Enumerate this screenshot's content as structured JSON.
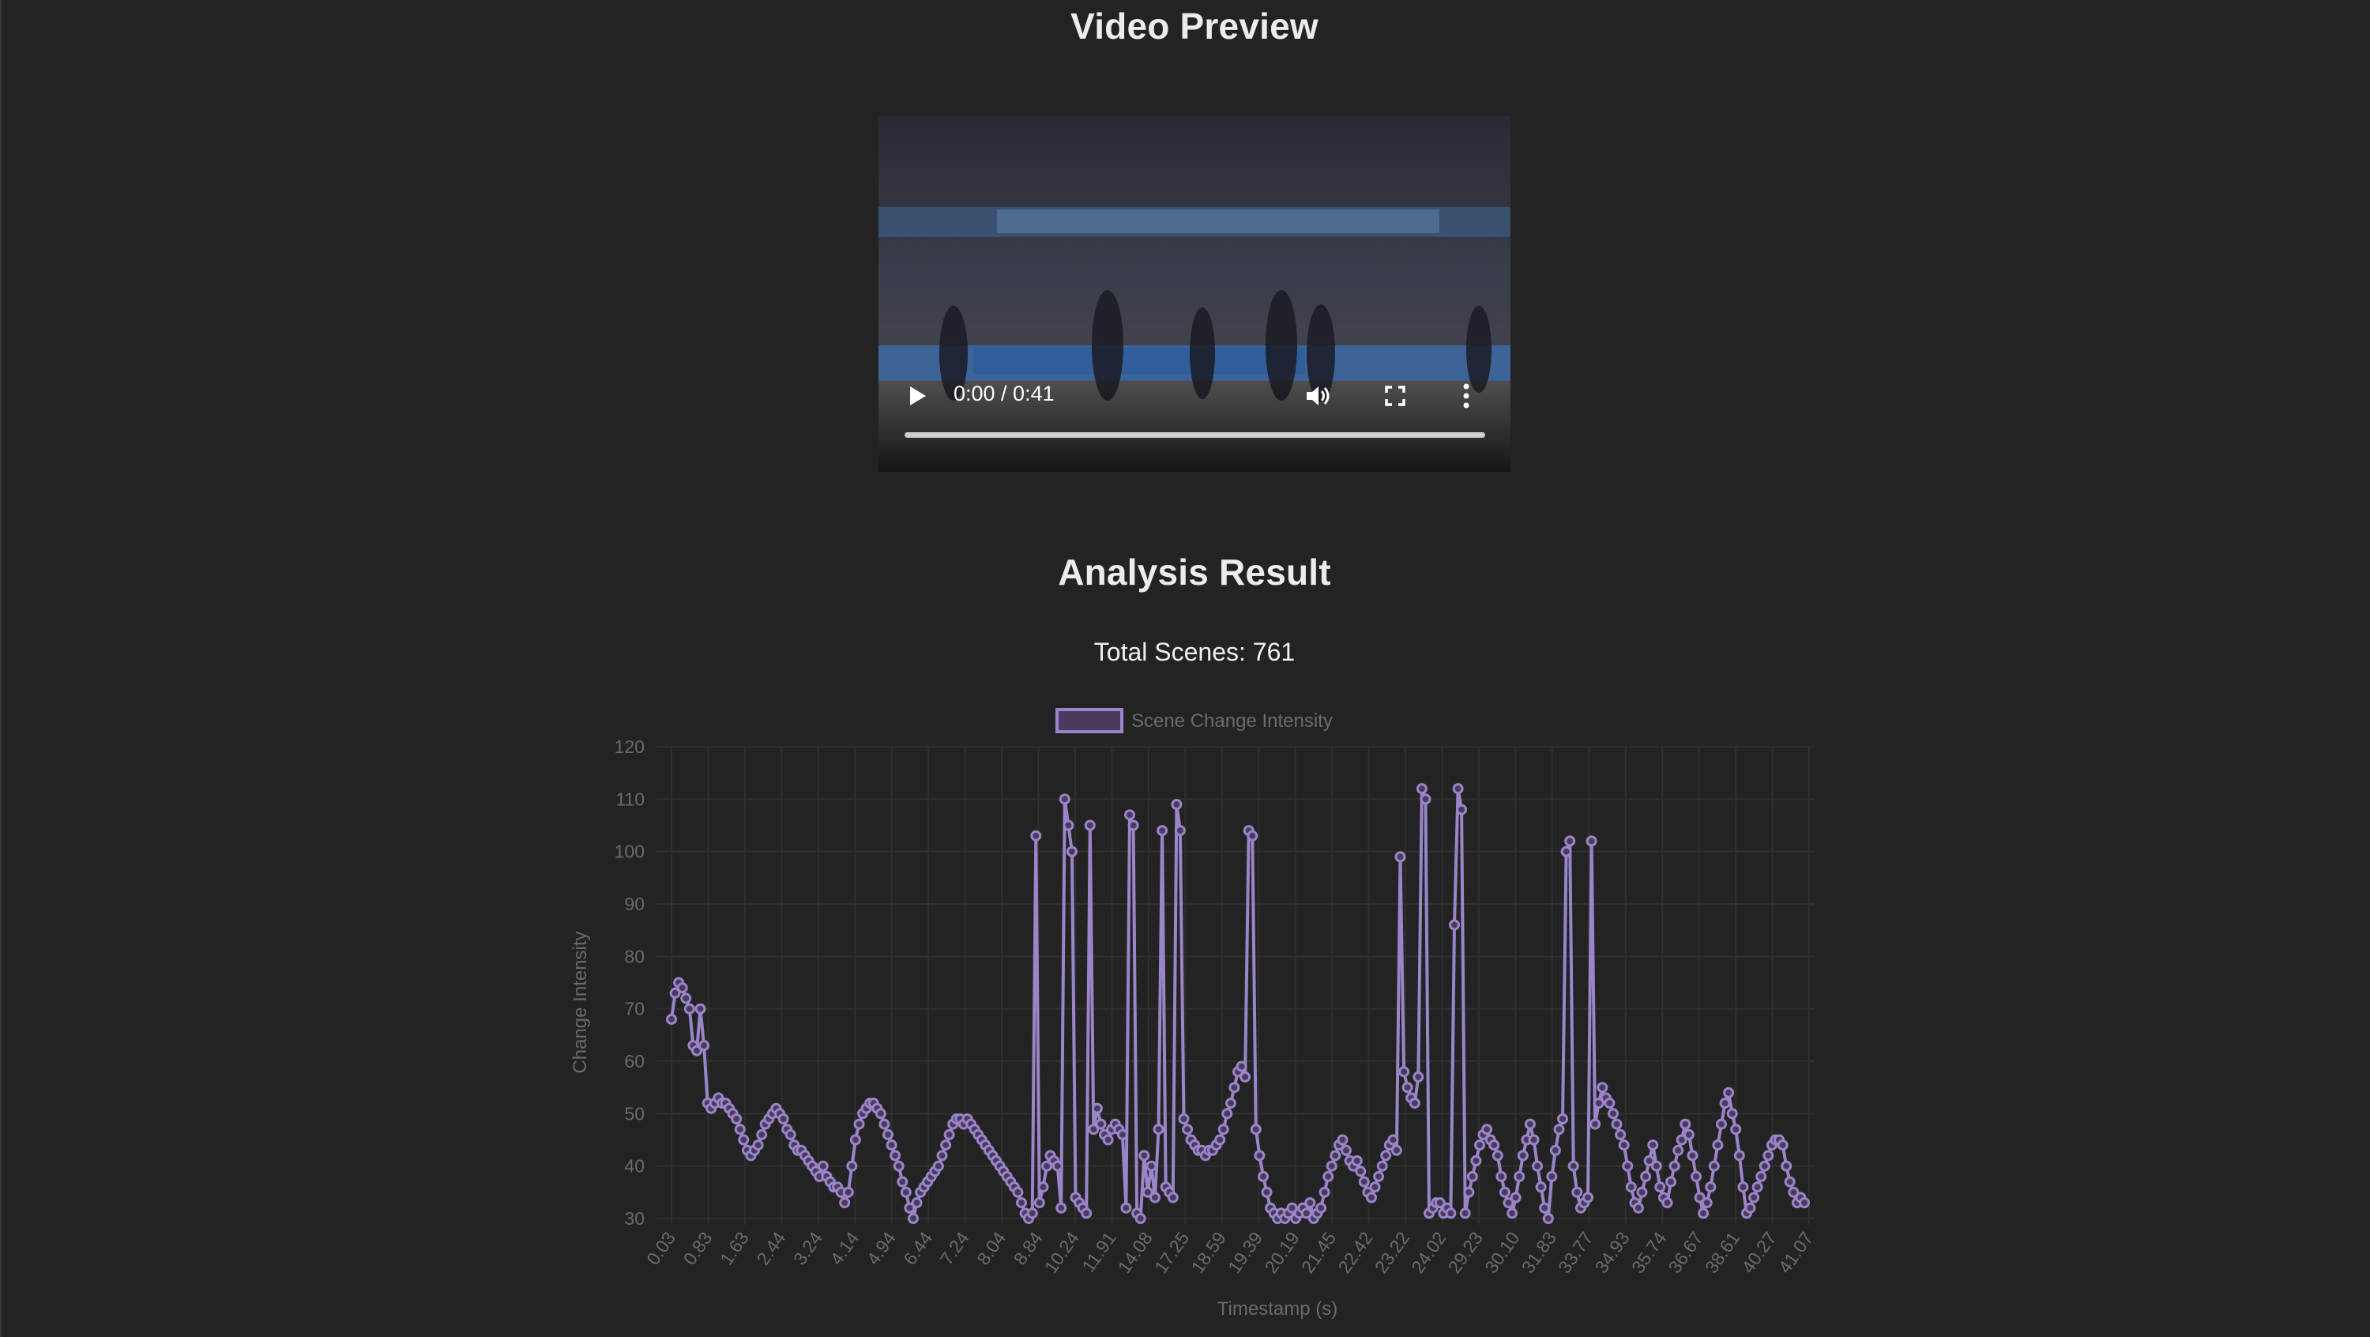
{
  "video_section": {
    "title": "Video Preview",
    "player": {
      "time_label": "0:00 / 0:41",
      "progress": 0,
      "controls": [
        "play-icon",
        "volume-icon",
        "fullscreen-icon",
        "more-options-icon"
      ]
    }
  },
  "analysis": {
    "title": "Analysis Result",
    "total_scenes": "Total Scenes: 761"
  },
  "colors": {
    "background": "#232323",
    "series": "#9a85c9",
    "series_fill": "#4b3a5e",
    "grid": "#2f2f2f",
    "axis_text": "#6b6b6b"
  },
  "chart_data": {
    "type": "line",
    "legend": [
      "Scene Change Intensity"
    ],
    "legend_position": "top",
    "xlabel": "Timestamp (s)",
    "ylabel": "Change Intensity",
    "ylim": [
      30,
      120
    ],
    "yticks": [
      30,
      40,
      50,
      60,
      70,
      80,
      90,
      100,
      110,
      120
    ],
    "xticks": [
      "0.03",
      "0.83",
      "1.63",
      "2.44",
      "3.24",
      "4.14",
      "4.94",
      "6.44",
      "7.24",
      "8.04",
      "8.84",
      "10.24",
      "11.91",
      "14.08",
      "17.25",
      "18.59",
      "19.39",
      "20.19",
      "21.45",
      "22.42",
      "23.22",
      "24.02",
      "29.23",
      "30.10",
      "31.83",
      "33.77",
      "34.93",
      "35.74",
      "36.67",
      "38.61",
      "40.27",
      "41.07"
    ],
    "grid": true,
    "series": [
      {
        "name": "Scene Change Intensity",
        "points": [
          [
            0,
            68
          ],
          [
            1,
            73
          ],
          [
            2,
            75
          ],
          [
            3,
            74
          ],
          [
            4,
            72
          ],
          [
            5,
            70
          ],
          [
            6,
            63
          ],
          [
            7,
            62
          ],
          [
            8,
            70
          ],
          [
            9,
            63
          ],
          [
            10,
            52
          ],
          [
            11,
            51
          ],
          [
            12,
            52
          ],
          [
            13,
            53
          ],
          [
            14,
            52
          ],
          [
            15,
            52
          ],
          [
            16,
            51
          ],
          [
            17,
            50
          ],
          [
            18,
            49
          ],
          [
            19,
            47
          ],
          [
            20,
            45
          ],
          [
            21,
            43
          ],
          [
            22,
            42
          ],
          [
            23,
            43
          ],
          [
            24,
            44
          ],
          [
            25,
            46
          ],
          [
            26,
            48
          ],
          [
            27,
            49
          ],
          [
            28,
            50
          ],
          [
            29,
            51
          ],
          [
            30,
            50
          ],
          [
            31,
            49
          ],
          [
            32,
            47
          ],
          [
            33,
            46
          ],
          [
            34,
            44
          ],
          [
            35,
            43
          ],
          [
            36,
            43
          ],
          [
            37,
            42
          ],
          [
            38,
            41
          ],
          [
            39,
            40
          ],
          [
            40,
            39
          ],
          [
            41,
            38
          ],
          [
            42,
            40
          ],
          [
            43,
            38
          ],
          [
            44,
            37
          ],
          [
            45,
            36
          ],
          [
            46,
            36
          ],
          [
            47,
            35
          ],
          [
            48,
            33
          ],
          [
            49,
            35
          ],
          [
            50,
            40
          ],
          [
            51,
            45
          ],
          [
            52,
            48
          ],
          [
            53,
            50
          ],
          [
            54,
            51
          ],
          [
            55,
            52
          ],
          [
            56,
            52
          ],
          [
            57,
            51
          ],
          [
            58,
            50
          ],
          [
            59,
            48
          ],
          [
            60,
            46
          ],
          [
            61,
            44
          ],
          [
            62,
            42
          ],
          [
            63,
            40
          ],
          [
            64,
            37
          ],
          [
            65,
            35
          ],
          [
            66,
            32
          ],
          [
            67,
            30
          ],
          [
            68,
            33
          ],
          [
            69,
            35
          ],
          [
            70,
            36
          ],
          [
            71,
            37
          ],
          [
            72,
            38
          ],
          [
            73,
            39
          ],
          [
            74,
            40
          ],
          [
            75,
            42
          ],
          [
            76,
            44
          ],
          [
            77,
            46
          ],
          [
            78,
            48
          ],
          [
            79,
            49
          ],
          [
            80,
            49
          ],
          [
            81,
            48
          ],
          [
            82,
            49
          ],
          [
            83,
            48
          ],
          [
            84,
            47
          ],
          [
            85,
            46
          ],
          [
            86,
            45
          ],
          [
            87,
            44
          ],
          [
            88,
            43
          ],
          [
            89,
            42
          ],
          [
            90,
            41
          ],
          [
            91,
            40
          ],
          [
            92,
            39
          ],
          [
            93,
            38
          ],
          [
            94,
            37
          ],
          [
            95,
            36
          ],
          [
            96,
            35
          ],
          [
            97,
            33
          ],
          [
            98,
            31
          ],
          [
            99,
            30
          ],
          [
            100,
            31
          ],
          [
            101,
            103
          ],
          [
            102,
            33
          ],
          [
            103,
            36
          ],
          [
            104,
            40
          ],
          [
            105,
            42
          ],
          [
            106,
            41
          ],
          [
            107,
            40
          ],
          [
            108,
            32
          ],
          [
            109,
            110
          ],
          [
            110,
            105
          ],
          [
            111,
            100
          ],
          [
            112,
            34
          ],
          [
            113,
            33
          ],
          [
            114,
            32
          ],
          [
            115,
            31
          ],
          [
            116,
            105
          ],
          [
            117,
            47
          ],
          [
            118,
            51
          ],
          [
            119,
            48
          ],
          [
            120,
            46
          ],
          [
            121,
            45
          ],
          [
            122,
            47
          ],
          [
            123,
            48
          ],
          [
            124,
            47
          ],
          [
            125,
            46
          ],
          [
            126,
            32
          ],
          [
            127,
            107
          ],
          [
            128,
            105
          ],
          [
            129,
            31
          ],
          [
            130,
            30
          ],
          [
            131,
            42
          ],
          [
            132,
            35
          ],
          [
            133,
            40
          ],
          [
            134,
            34
          ],
          [
            135,
            47
          ],
          [
            136,
            104
          ],
          [
            137,
            36
          ],
          [
            138,
            35
          ],
          [
            139,
            34
          ],
          [
            140,
            109
          ],
          [
            141,
            104
          ],
          [
            142,
            49
          ],
          [
            143,
            47
          ],
          [
            144,
            45
          ],
          [
            145,
            44
          ],
          [
            146,
            43
          ],
          [
            147,
            43
          ],
          [
            148,
            42
          ],
          [
            149,
            43
          ],
          [
            150,
            43
          ],
          [
            151,
            44
          ],
          [
            152,
            45
          ],
          [
            153,
            47
          ],
          [
            154,
            50
          ],
          [
            155,
            52
          ],
          [
            156,
            55
          ],
          [
            157,
            58
          ],
          [
            158,
            59
          ],
          [
            159,
            57
          ],
          [
            160,
            104
          ],
          [
            161,
            103
          ],
          [
            162,
            47
          ],
          [
            163,
            42
          ],
          [
            164,
            38
          ],
          [
            165,
            35
          ],
          [
            166,
            32
          ],
          [
            167,
            31
          ],
          [
            168,
            30
          ],
          [
            169,
            31
          ],
          [
            170,
            30
          ],
          [
            171,
            31
          ],
          [
            172,
            32
          ],
          [
            173,
            30
          ],
          [
            174,
            31
          ],
          [
            175,
            32
          ],
          [
            176,
            31
          ],
          [
            177,
            33
          ],
          [
            178,
            30
          ],
          [
            179,
            31
          ],
          [
            180,
            32
          ],
          [
            181,
            35
          ],
          [
            182,
            38
          ],
          [
            183,
            40
          ],
          [
            184,
            42
          ],
          [
            185,
            44
          ],
          [
            186,
            45
          ],
          [
            187,
            43
          ],
          [
            188,
            41
          ],
          [
            189,
            40
          ],
          [
            190,
            41
          ],
          [
            191,
            39
          ],
          [
            192,
            37
          ],
          [
            193,
            35
          ],
          [
            194,
            34
          ],
          [
            195,
            36
          ],
          [
            196,
            38
          ],
          [
            197,
            40
          ],
          [
            198,
            42
          ],
          [
            199,
            44
          ],
          [
            200,
            45
          ],
          [
            201,
            43
          ],
          [
            202,
            99
          ],
          [
            203,
            58
          ],
          [
            204,
            55
          ],
          [
            205,
            53
          ],
          [
            206,
            52
          ],
          [
            207,
            57
          ],
          [
            208,
            112
          ],
          [
            209,
            110
          ],
          [
            210,
            31
          ],
          [
            211,
            32
          ],
          [
            212,
            33
          ],
          [
            213,
            33
          ],
          [
            214,
            31
          ],
          [
            215,
            32
          ],
          [
            216,
            31
          ],
          [
            217,
            86
          ],
          [
            218,
            112
          ],
          [
            219,
            108
          ],
          [
            220,
            31
          ],
          [
            221,
            35
          ],
          [
            222,
            38
          ],
          [
            223,
            41
          ],
          [
            224,
            44
          ],
          [
            225,
            46
          ],
          [
            226,
            47
          ],
          [
            227,
            45
          ],
          [
            228,
            44
          ],
          [
            229,
            42
          ],
          [
            230,
            38
          ],
          [
            231,
            35
          ],
          [
            232,
            33
          ],
          [
            233,
            31
          ],
          [
            234,
            34
          ],
          [
            235,
            38
          ],
          [
            236,
            42
          ],
          [
            237,
            45
          ],
          [
            238,
            48
          ],
          [
            239,
            45
          ],
          [
            240,
            40
          ],
          [
            241,
            36
          ],
          [
            242,
            32
          ],
          [
            243,
            30
          ],
          [
            244,
            38
          ],
          [
            245,
            43
          ],
          [
            246,
            47
          ],
          [
            247,
            49
          ],
          [
            248,
            100
          ],
          [
            249,
            102
          ],
          [
            250,
            40
          ],
          [
            251,
            35
          ],
          [
            252,
            32
          ],
          [
            253,
            33
          ],
          [
            254,
            34
          ],
          [
            255,
            102
          ],
          [
            256,
            48
          ],
          [
            257,
            52
          ],
          [
            258,
            55
          ],
          [
            259,
            53
          ],
          [
            260,
            52
          ],
          [
            261,
            50
          ],
          [
            262,
            48
          ],
          [
            263,
            46
          ],
          [
            264,
            44
          ],
          [
            265,
            40
          ],
          [
            266,
            36
          ],
          [
            267,
            33
          ],
          [
            268,
            32
          ],
          [
            269,
            35
          ],
          [
            270,
            38
          ],
          [
            271,
            41
          ],
          [
            272,
            44
          ],
          [
            273,
            40
          ],
          [
            274,
            36
          ],
          [
            275,
            34
          ],
          [
            276,
            33
          ],
          [
            277,
            37
          ],
          [
            278,
            40
          ],
          [
            279,
            43
          ],
          [
            280,
            45
          ],
          [
            281,
            48
          ],
          [
            282,
            46
          ],
          [
            283,
            42
          ],
          [
            284,
            38
          ],
          [
            285,
            34
          ],
          [
            286,
            31
          ],
          [
            287,
            33
          ],
          [
            288,
            36
          ],
          [
            289,
            40
          ],
          [
            290,
            44
          ],
          [
            291,
            48
          ],
          [
            292,
            52
          ],
          [
            293,
            54
          ],
          [
            294,
            50
          ],
          [
            295,
            47
          ],
          [
            296,
            42
          ],
          [
            297,
            36
          ],
          [
            298,
            31
          ],
          [
            299,
            32
          ],
          [
            300,
            34
          ],
          [
            301,
            36
          ],
          [
            302,
            38
          ],
          [
            303,
            40
          ],
          [
            304,
            42
          ],
          [
            305,
            44
          ],
          [
            306,
            45
          ],
          [
            307,
            45
          ],
          [
            308,
            44
          ],
          [
            309,
            40
          ],
          [
            310,
            37
          ],
          [
            311,
            35
          ],
          [
            312,
            33
          ],
          [
            313,
            34
          ],
          [
            314,
            33
          ]
        ]
      }
    ]
  }
}
